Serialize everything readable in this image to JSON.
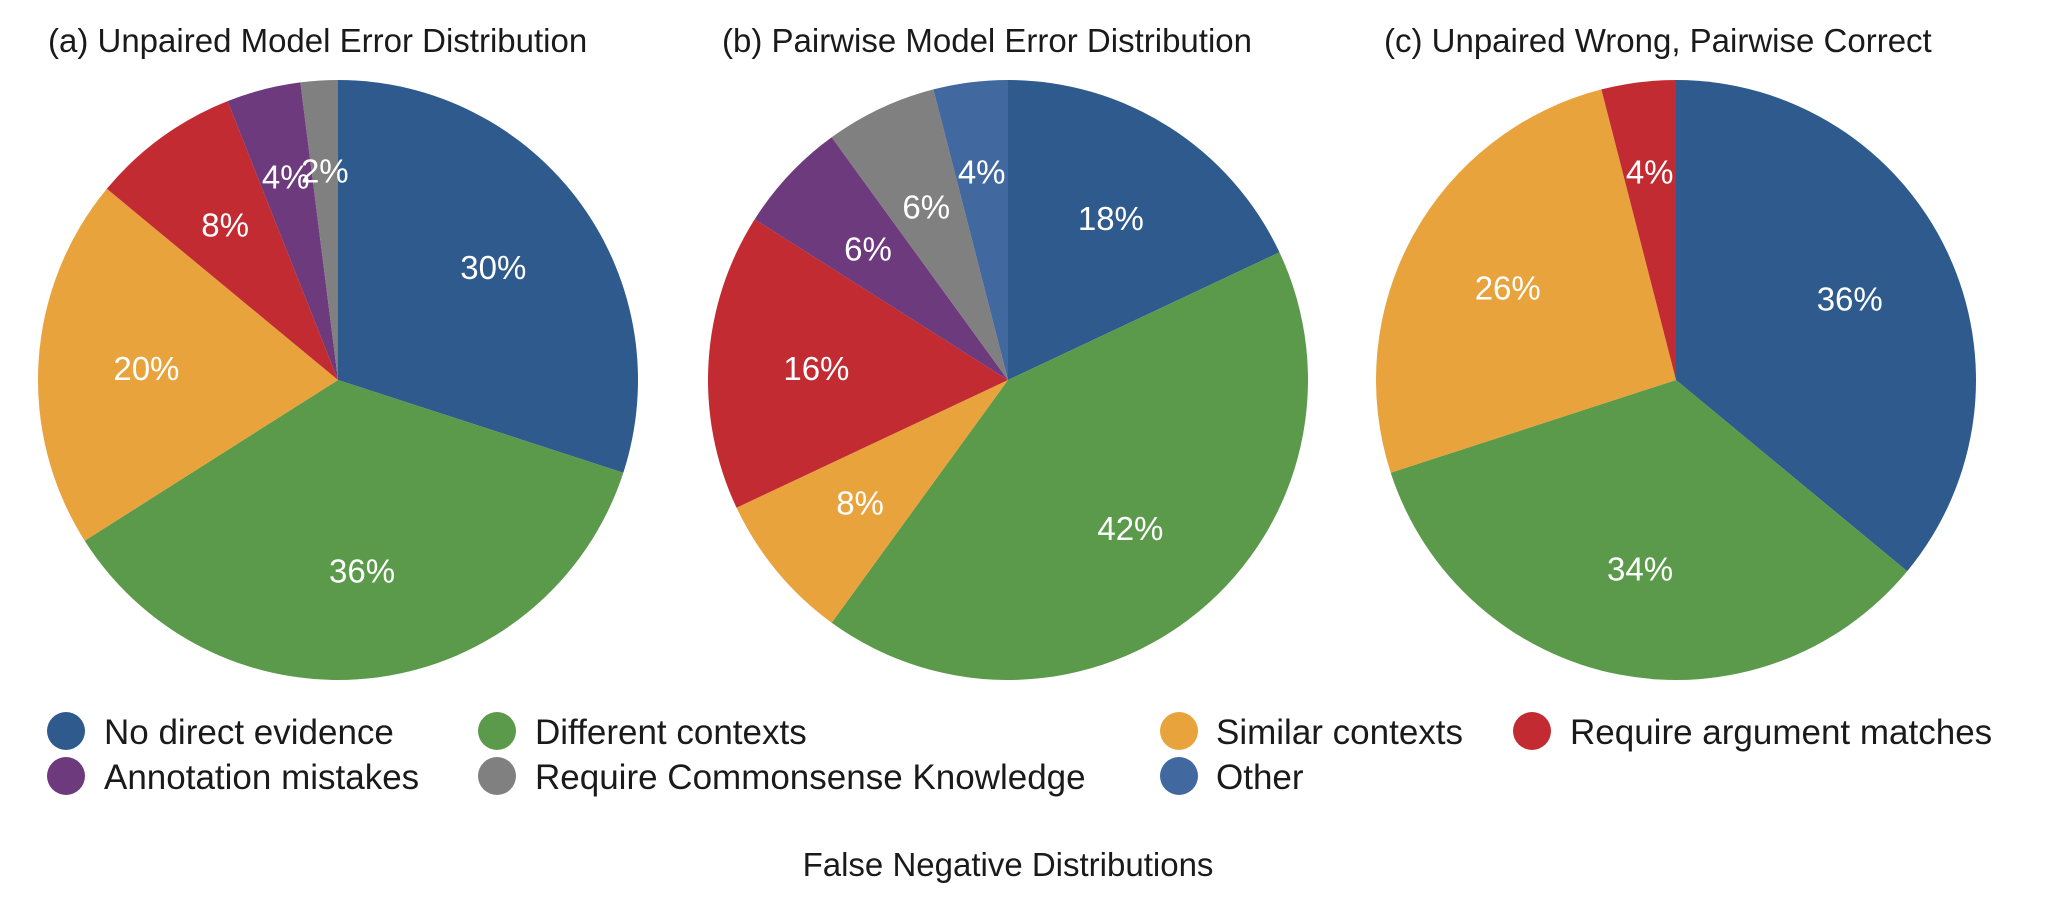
{
  "caption": "False Negative Distributions",
  "categories": [
    {
      "key": "no_direct_evidence",
      "label": "No direct evidence",
      "color": "#2e5a8d"
    },
    {
      "key": "different_contexts",
      "label": "Different contexts",
      "color": "#5b9a4a"
    },
    {
      "key": "similar_contexts",
      "label": "Similar contexts",
      "color": "#e8a33d"
    },
    {
      "key": "require_argument_matches",
      "label": "Require argument matches",
      "color": "#c22b32"
    },
    {
      "key": "annotation_mistakes",
      "label": "Annotation mistakes",
      "color": "#6d3a7d"
    },
    {
      "key": "require_commonsense",
      "label": "Require Commonsense Knowledge",
      "color": "#808080"
    },
    {
      "key": "other",
      "label": "Other",
      "color": "#4169a0"
    }
  ],
  "chart_data": [
    {
      "type": "pie",
      "title": "(a) Unpaired Model Error Distribution",
      "slices": [
        {
          "category": "no_direct_evidence",
          "value": 30,
          "label": "30%"
        },
        {
          "category": "different_contexts",
          "value": 36,
          "label": "36%"
        },
        {
          "category": "similar_contexts",
          "value": 20,
          "label": "20%"
        },
        {
          "category": "require_argument_matches",
          "value": 8,
          "label": "8%"
        },
        {
          "category": "annotation_mistakes",
          "value": 4,
          "label": "4%"
        },
        {
          "category": "require_commonsense",
          "value": 2,
          "label": "2%"
        }
      ]
    },
    {
      "type": "pie",
      "title": "(b) Pairwise Model Error Distribution",
      "slices": [
        {
          "category": "no_direct_evidence",
          "value": 18,
          "label": "18%"
        },
        {
          "category": "different_contexts",
          "value": 42,
          "label": "42%"
        },
        {
          "category": "similar_contexts",
          "value": 8,
          "label": "8%"
        },
        {
          "category": "require_argument_matches",
          "value": 16,
          "label": "16%"
        },
        {
          "category": "annotation_mistakes",
          "value": 6,
          "label": "6%"
        },
        {
          "category": "require_commonsense",
          "value": 6,
          "label": "6%"
        },
        {
          "category": "other",
          "value": 4,
          "label": "4%"
        }
      ]
    },
    {
      "type": "pie",
      "title": "(c) Unpaired Wrong, Pairwise Correct",
      "slices": [
        {
          "category": "no_direct_evidence",
          "value": 36,
          "label": "36%"
        },
        {
          "category": "different_contexts",
          "value": 34,
          "label": "34%"
        },
        {
          "category": "similar_contexts",
          "value": 26,
          "label": "26%"
        },
        {
          "category": "require_argument_matches",
          "value": 4,
          "label": "4%"
        }
      ]
    }
  ]
}
